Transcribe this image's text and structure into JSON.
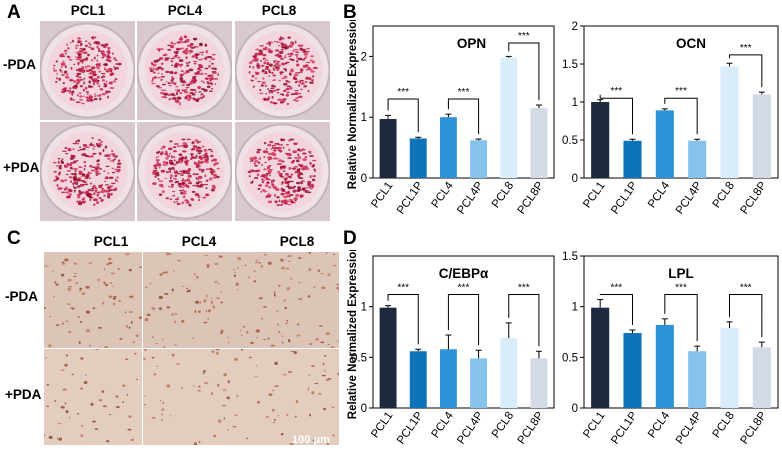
{
  "panels": {
    "a": {
      "letter": "A",
      "columns": [
        "PCL1",
        "PCL4",
        "PCL8"
      ],
      "rows": [
        "-PDA",
        "+PDA"
      ]
    },
    "b": {
      "letter": "B"
    },
    "c": {
      "letter": "C",
      "columns": [
        "PCL1",
        "PCL4",
        "PCL8"
      ],
      "rows": [
        "-PDA",
        "+PDA"
      ],
      "scale_bar": "100 μm"
    },
    "d": {
      "letter": "D"
    }
  },
  "colors": {
    "PCL1": "#1c2a3c",
    "PCL1P": "#0e73b8",
    "PCL4": "#2b93d6",
    "PCL4P": "#86c3ec",
    "PCL8": "#d9ecfa",
    "PCL8P": "#d3dae6"
  },
  "chart_data": [
    {
      "id": "opn",
      "type": "bar",
      "title": "OPN",
      "ylabel": "Relative Normalized Expression",
      "categories": [
        "PCL1",
        "PCL1P",
        "PCL4",
        "PCL4P",
        "PCL8",
        "PCL8P"
      ],
      "values": [
        0.97,
        0.65,
        1.0,
        0.62,
        1.98,
        1.15
      ],
      "errors": [
        0.06,
        0.02,
        0.05,
        0.02,
        0.02,
        0.05
      ],
      "ylim": [
        0,
        2.5
      ],
      "yticks": [
        "0",
        "1",
        "2"
      ],
      "ytick_values": [
        0,
        1,
        2
      ],
      "significance": [
        {
          "from": 0,
          "to": 1,
          "y": 1.3,
          "label": "***"
        },
        {
          "from": 2,
          "to": 3,
          "y": 1.3,
          "label": "***"
        },
        {
          "from": 4,
          "to": 5,
          "y": 2.22,
          "label": "***"
        }
      ]
    },
    {
      "id": "ocn",
      "type": "bar",
      "title": "OCN",
      "ylabel": "",
      "categories": [
        "PCL1",
        "PCL1P",
        "PCL4",
        "PCL4P",
        "PCL8",
        "PCL8P"
      ],
      "values": [
        1.0,
        0.49,
        0.89,
        0.49,
        1.47,
        1.1
      ],
      "errors": [
        0.03,
        0.02,
        0.02,
        0.02,
        0.04,
        0.03
      ],
      "ylim": [
        0,
        2.0
      ],
      "yticks": [
        "0",
        "0.5",
        "1",
        "1.5",
        "2"
      ],
      "ytick_values": [
        0,
        0.5,
        1,
        1.5,
        2
      ],
      "significance": [
        {
          "from": 0,
          "to": 1,
          "y": 1.05,
          "label": "***"
        },
        {
          "from": 2,
          "to": 3,
          "y": 1.05,
          "label": "***"
        },
        {
          "from": 4,
          "to": 5,
          "y": 1.62,
          "label": "***"
        }
      ]
    },
    {
      "id": "cebpa",
      "type": "bar",
      "title": "C/EBPα",
      "ylabel": "Relative Normalized Expression",
      "categories": [
        "PCL1",
        "PCL1P",
        "PCL4",
        "PCL4P",
        "PCL8",
        "PCL8P"
      ],
      "values": [
        0.99,
        0.56,
        0.58,
        0.49,
        0.69,
        0.49
      ],
      "errors": [
        0.02,
        0.02,
        0.14,
        0.08,
        0.15,
        0.07
      ],
      "ylim": [
        0,
        1.5
      ],
      "yticks": [
        "0",
        "0.5",
        "1"
      ],
      "ytick_values": [
        0,
        0.5,
        1
      ],
      "significance": [
        {
          "from": 0,
          "to": 1,
          "y": 1.12,
          "label": "***"
        },
        {
          "from": 2,
          "to": 3,
          "y": 1.12,
          "label": "***"
        },
        {
          "from": 4,
          "to": 5,
          "y": 1.12,
          "label": "***"
        }
      ]
    },
    {
      "id": "lpl",
      "type": "bar",
      "title": "LPL",
      "ylabel": "",
      "categories": [
        "PCL1",
        "PCL1P",
        "PCL4",
        "PCL4P",
        "PCL8",
        "PCL8P"
      ],
      "values": [
        0.99,
        0.74,
        0.82,
        0.56,
        0.79,
        0.6
      ],
      "errors": [
        0.08,
        0.03,
        0.06,
        0.05,
        0.06,
        0.05
      ],
      "ylim": [
        0,
        1.5
      ],
      "yticks": [
        "0",
        "0.5",
        "1",
        "1.5"
      ],
      "ytick_values": [
        0,
        0.5,
        1,
        1.5
      ],
      "significance": [
        {
          "from": 0,
          "to": 1,
          "y": 1.12,
          "label": "***"
        },
        {
          "from": 2,
          "to": 3,
          "y": 1.12,
          "label": "***"
        },
        {
          "from": 4,
          "to": 5,
          "y": 1.12,
          "label": "***"
        }
      ]
    }
  ]
}
